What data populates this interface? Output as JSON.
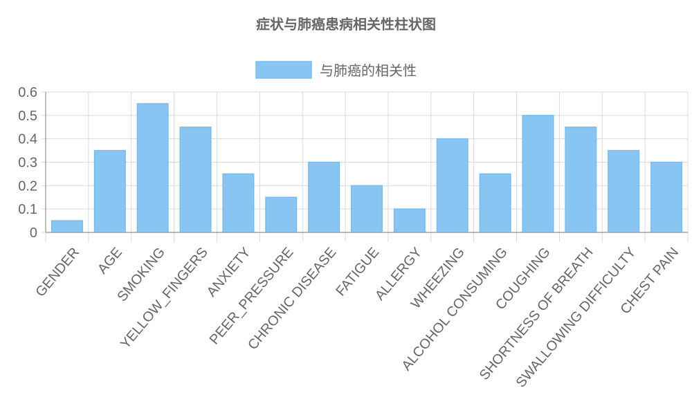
{
  "chart_data": {
    "type": "bar",
    "title": "症状与肺癌患病相关性柱状图",
    "legend": {
      "position": "top",
      "entries": [
        "与肺癌的相关性"
      ]
    },
    "categories": [
      "GENDER",
      "AGE",
      "SMOKING",
      "YELLOW_FINGERS",
      "ANXIETY",
      "PEER_PRESSURE",
      "CHRONIC DISEASE",
      "FATIGUE",
      "ALLERGY",
      "WHEEZING",
      "ALCOHOL CONSUMING",
      "COUGHING",
      "SHORTNESS OF BREATH",
      "SWALLOWING DIFFICULTY",
      "CHEST PAIN"
    ],
    "series": [
      {
        "name": "与肺癌的相关性",
        "values": [
          0.05,
          0.35,
          0.55,
          0.45,
          0.25,
          0.15,
          0.3,
          0.2,
          0.1,
          0.4,
          0.25,
          0.5,
          0.45,
          0.35,
          0.3
        ]
      }
    ],
    "ylim": [
      0,
      0.6
    ],
    "yticks": [
      "0",
      "0.1",
      "0.2",
      "0.3",
      "0.4",
      "0.5",
      "0.6"
    ],
    "xlabel": "",
    "ylabel": "",
    "grid": true,
    "colors": {
      "bar_fill": "#88c5f2",
      "bar_border": "#75bdf0",
      "text": "#666666",
      "grid": "#d9d9d9",
      "axis": "#a6a6a6"
    }
  }
}
